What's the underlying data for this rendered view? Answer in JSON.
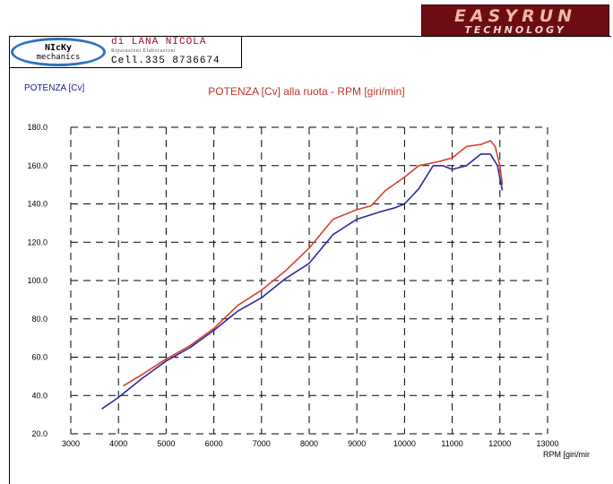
{
  "brand": {
    "name": "EASYRUN",
    "tagline": "TECHNOLOGY"
  },
  "header": {
    "logo_line1": "NIcKy",
    "logo_line2": "mechanics",
    "owner": "di LANA NICOLA",
    "services": "Riparazioni Elaborazioni",
    "phone": "Cell.335 8736674"
  },
  "colors": {
    "power_curve_a": "#d9412a",
    "power_curve_b": "#2a2aa0",
    "grid": "#000000",
    "brand_bg": "#6b0d12"
  },
  "chart_data": {
    "type": "line",
    "title": "POTENZA [Cv] alla ruota - RPM [giri/min]",
    "ylabel": "POTENZA [Cv]",
    "xlabel": "RPM [giri/mir",
    "xlim": [
      3000,
      13000
    ],
    "ylim": [
      20,
      180
    ],
    "x_ticks": [
      3000,
      4000,
      5000,
      6000,
      7000,
      8000,
      9000,
      10000,
      11000,
      12000,
      13000
    ],
    "y_ticks": [
      "20.0",
      "40.0",
      "60.0",
      "80.0",
      "100.0",
      "120.0",
      "140.0",
      "160.0",
      "180.0"
    ],
    "grid": true,
    "grid_style": "dashed",
    "series": [
      {
        "color": "#d9412a",
        "points": [
          [
            4100,
            45
          ],
          [
            4500,
            51
          ],
          [
            5000,
            59
          ],
          [
            5500,
            66
          ],
          [
            6000,
            75
          ],
          [
            6500,
            87
          ],
          [
            7000,
            95
          ],
          [
            7500,
            105
          ],
          [
            8000,
            117
          ],
          [
            8500,
            132
          ],
          [
            9000,
            137
          ],
          [
            9300,
            139
          ],
          [
            9600,
            147
          ],
          [
            10000,
            154
          ],
          [
            10300,
            160
          ],
          [
            10700,
            162
          ],
          [
            11000,
            164
          ],
          [
            11300,
            170
          ],
          [
            11600,
            171
          ],
          [
            11800,
            173
          ],
          [
            11900,
            170
          ],
          [
            12000,
            160
          ],
          [
            12050,
            150
          ]
        ]
      },
      {
        "color": "#2a2aa0",
        "points": [
          [
            3650,
            33
          ],
          [
            4000,
            39
          ],
          [
            4500,
            49
          ],
          [
            5000,
            58
          ],
          [
            5500,
            65
          ],
          [
            6000,
            74
          ],
          [
            6500,
            84
          ],
          [
            7000,
            91
          ],
          [
            7500,
            101
          ],
          [
            8000,
            109
          ],
          [
            8500,
            124
          ],
          [
            9000,
            132
          ],
          [
            9500,
            136
          ],
          [
            9800,
            138
          ],
          [
            10000,
            140
          ],
          [
            10300,
            148
          ],
          [
            10600,
            160
          ],
          [
            10800,
            160
          ],
          [
            11000,
            158
          ],
          [
            11300,
            160
          ],
          [
            11600,
            166
          ],
          [
            11800,
            166
          ],
          [
            11950,
            160
          ],
          [
            12050,
            147
          ]
        ]
      }
    ]
  }
}
